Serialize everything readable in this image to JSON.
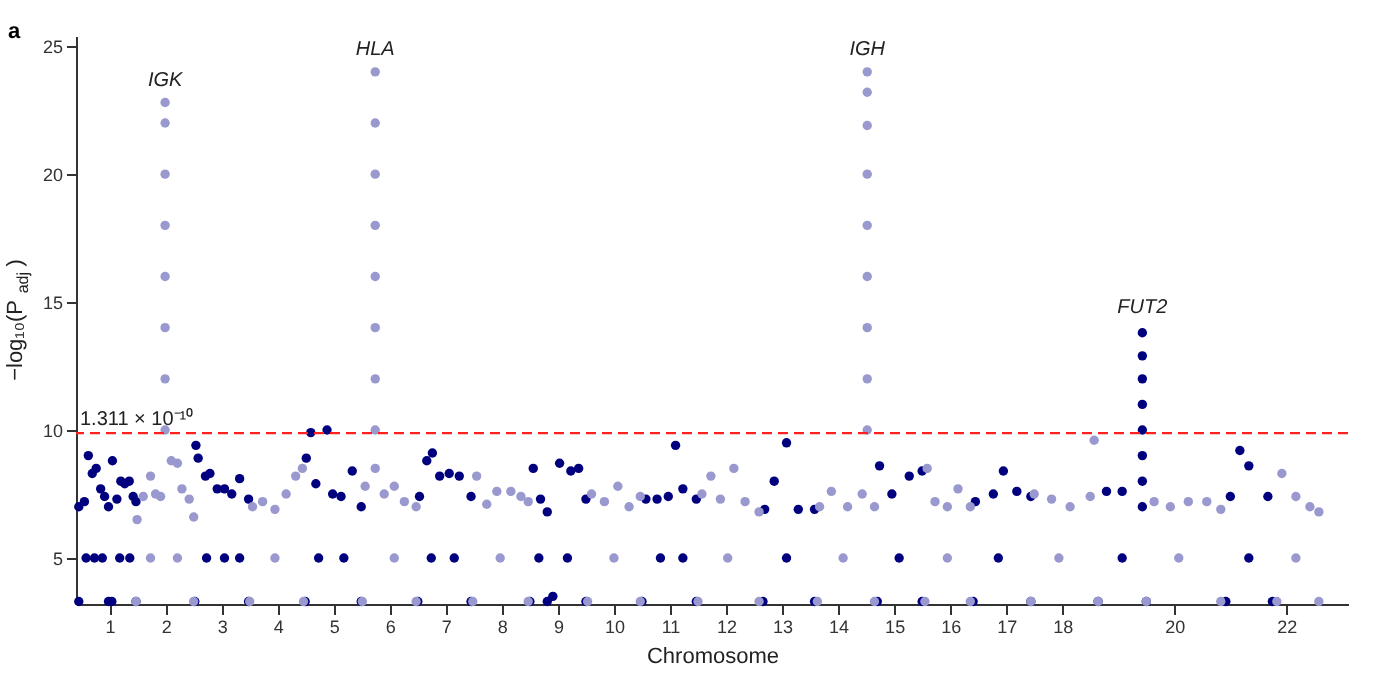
{
  "chart_data": {
    "type": "scatter",
    "xlabel": "Chromosome",
    "ylabel": "−log₁₀(P$_{adj}$)",
    "xlim": [
      0.4,
      23.1
    ],
    "ylim": [
      3.2,
      25.4
    ],
    "xticks": [
      1,
      2,
      3,
      4,
      5,
      6,
      7,
      8,
      9,
      10,
      11,
      12,
      13,
      14,
      15,
      16,
      17,
      18,
      20,
      22
    ],
    "yticks": [
      5,
      10,
      15,
      20,
      25
    ],
    "grid": false,
    "marker": "circle",
    "ref_lines": [
      {
        "axis": "y",
        "value": 9.88,
        "label": "1.311 × 10⁻¹⁰",
        "color": "#ff2020",
        "line_style": "dashed"
      }
    ],
    "annotations": [
      "a",
      {
        "text": "IGK",
        "x": 1.99,
        "y": 23.3
      },
      {
        "text": "HLA",
        "x": 5.74,
        "y": 24.5
      },
      {
        "text": "IGH",
        "x": 14.52,
        "y": 24.5
      },
      {
        "text": "FUT2",
        "x": 19.43,
        "y": 14.4
      }
    ],
    "series": [
      {
        "color": "#00007f",
        "x": [
          0.45,
          0.45,
          0.55,
          0.62,
          0.69,
          0.76,
          0.84,
          0.91,
          0.98,
          0.98,
          0.73,
          0.58,
          0.87,
          1.04,
          1.05,
          1.13,
          1.2,
          1.27,
          1.35,
          1.42,
          1.47,
          1.47,
          1.18,
          1.36,
          2.52,
          2.54,
          2.58,
          2.71,
          2.79,
          2.92,
          3.05,
          3.18,
          3.32,
          3.48,
          3.48,
          2.73,
          3.05,
          3.32,
          4.49,
          4.51,
          4.59,
          4.88,
          4.68,
          4.98,
          5.13,
          5.33,
          5.49,
          5.49,
          4.73,
          5.18,
          6.5,
          6.53,
          6.66,
          6.76,
          6.89,
          7.06,
          7.24,
          7.45,
          7.45,
          6.74,
          7.15,
          8.5,
          8.56,
          8.69,
          8.81,
          8.81,
          8.66,
          8.91,
          9.03,
          9.23,
          9.37,
          9.5,
          9.5,
          9.17,
          10.5,
          10.57,
          10.77,
          10.97,
          11.1,
          11.23,
          11.47,
          11.47,
          10.83,
          11.23,
          12.66,
          12.69,
          12.86,
          13.08,
          13.29,
          13.58,
          13.58,
          13.08,
          14.7,
          14.74,
          14.96,
          15.27,
          15.5,
          15.5,
          15.09,
          16.41,
          16.45,
          16.77,
          16.95,
          17.19,
          17.44,
          17.44,
          16.86,
          18.64,
          18.79,
          19.07,
          19.43,
          19.5,
          19.07,
          19.43,
          19.43,
          19.43,
          19.43,
          19.43,
          19.43,
          19.43,
          20.92,
          21.0,
          21.17,
          21.33,
          21.67,
          21.75,
          21.33
        ],
        "values": [
          3.3,
          7,
          7.2,
          9.0,
          8.3,
          8.5,
          7.7,
          7.4,
          7.0,
          3.3,
          5,
          5,
          5,
          3.3,
          8.8,
          7.3,
          8,
          7.9,
          8.0,
          7.4,
          7.2,
          3.3,
          5,
          5,
          3.3,
          9.4,
          8.9,
          8.2,
          8.3,
          7.7,
          7.7,
          7.5,
          8.1,
          7.3,
          3.3,
          5,
          5,
          5,
          3.3,
          8.9,
          9.9,
          10.0,
          7.9,
          7.5,
          7.4,
          8.4,
          7.0,
          3.3,
          5,
          5,
          3.3,
          7.4,
          8.8,
          9.1,
          8.2,
          8.3,
          8.2,
          7.4,
          3.3,
          5,
          5,
          3.3,
          8.5,
          7.3,
          6.8,
          3.3,
          5,
          3.5,
          8.7,
          8.4,
          8.5,
          7.3,
          3.3,
          5,
          3.3,
          7.3,
          7.3,
          7.4,
          9.4,
          7.7,
          7.3,
          3.3,
          5,
          5,
          3.3,
          6.9,
          8.0,
          9.5,
          6.9,
          6.9,
          3.3,
          5,
          3.3,
          8.6,
          7.5,
          8.2,
          8.4,
          3.3,
          5,
          3.3,
          7.2,
          7.5,
          8.4,
          7.6,
          7.4,
          3.3,
          5,
          3.3,
          7.6,
          7.6,
          7.0,
          3.3,
          5,
          8,
          9,
          10,
          11,
          12,
          12.9,
          13.8,
          3.3,
          7.4,
          9.2,
          8.6,
          7.4,
          3.3,
          5
        ]
      },
      {
        "color": "#9999cf",
        "x": [
          1.47,
          1.49,
          1.6,
          1.73,
          1.82,
          1.91,
          2.1,
          2.21,
          2.29,
          2.42,
          2.5,
          2.5,
          1.73,
          2.21,
          1.99,
          1.99,
          1.99,
          1.99,
          1.99,
          1.99,
          1.99,
          1.99,
          3.5,
          3.55,
          3.73,
          3.95,
          4.15,
          4.32,
          4.44,
          4.46,
          3.95,
          5.51,
          5.56,
          5.74,
          5.9,
          6.08,
          6.26,
          6.47,
          6.47,
          6.08,
          5.74,
          5.74,
          5.74,
          5.74,
          5.74,
          5.74,
          5.74,
          5.74,
          7.48,
          7.55,
          7.73,
          7.91,
          8.16,
          8.34,
          8.47,
          8.47,
          7.97,
          9.53,
          9.6,
          9.83,
          10.07,
          10.27,
          10.47,
          10.47,
          10.0,
          11.5,
          11.57,
          11.73,
          11.9,
          12.14,
          12.34,
          12.59,
          12.59,
          12.03,
          13.63,
          13.67,
          13.88,
          14.17,
          14.43,
          14.65,
          14.65,
          14.09,
          14.52,
          14.52,
          14.52,
          14.52,
          14.52,
          14.52,
          14.52,
          14.52,
          14.52,
          15.55,
          15.59,
          15.73,
          15.95,
          16.14,
          16.36,
          16.36,
          15.95,
          17.44,
          17.5,
          17.81,
          18.14,
          18.5,
          18.57,
          18.64,
          17.94,
          19.5,
          19.64,
          19.93,
          20.25,
          20.58,
          20.83,
          20.83,
          20.08,
          21.83,
          21.92,
          22.17,
          22.42,
          22.58,
          22.58,
          22.17
        ],
        "values": [
          3.3,
          6.5,
          7.4,
          8.2,
          7.5,
          7.4,
          8.8,
          8.7,
          7.7,
          7.3,
          6.6,
          3.3,
          5,
          5,
          10,
          12,
          14,
          16,
          18,
          20,
          22,
          22.8,
          3.3,
          7.0,
          7.2,
          6.9,
          7.5,
          8.2,
          8.5,
          3.3,
          5,
          3.3,
          7.8,
          8.5,
          7.5,
          7.8,
          7.2,
          7.0,
          3.3,
          5,
          10,
          12,
          14,
          16,
          18,
          20,
          22,
          24,
          3.3,
          8.2,
          7.1,
          7.6,
          7.6,
          7.4,
          7.2,
          3.3,
          5,
          3.3,
          7.5,
          7.2,
          7.8,
          7.0,
          7.4,
          3.3,
          5,
          3.3,
          7.5,
          8.2,
          7.3,
          8.5,
          7.2,
          6.8,
          3.3,
          5,
          3.3,
          7.0,
          7.6,
          7.0,
          7.5,
          7.0,
          3.3,
          5,
          10,
          12,
          14,
          16,
          18,
          20,
          21.9,
          23.2,
          24,
          3.3,
          8.5,
          7.2,
          7.0,
          7.7,
          7.0,
          3.3,
          5,
          3.3,
          7.5,
          7.3,
          7.0,
          7.4,
          9.6,
          3.3,
          5,
          3.3,
          7.2,
          7.0,
          7.2,
          7.2,
          6.9,
          3.3,
          5,
          3.3,
          8.3,
          7.4,
          7.0,
          6.8,
          3.3,
          5
        ]
      }
    ]
  }
}
